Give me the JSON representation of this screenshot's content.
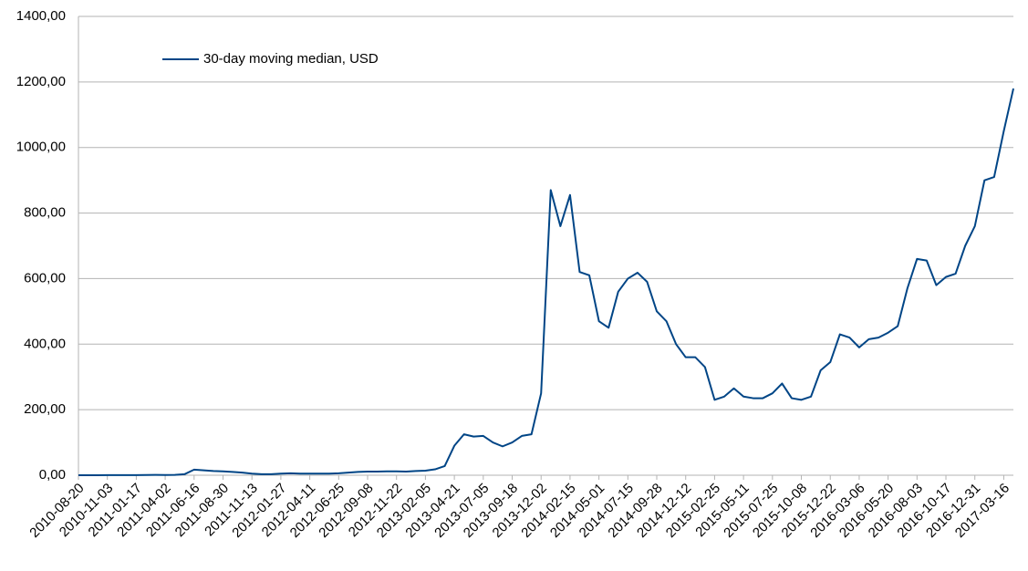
{
  "chart_data": {
    "type": "line",
    "categories": [
      "2010-08-20",
      null,
      null,
      "2010-11-03",
      null,
      null,
      "2011-01-17",
      null,
      null,
      "2011-04-02",
      null,
      null,
      "2011-06-16",
      null,
      null,
      "2011-08-30",
      null,
      null,
      "2011-11-13",
      null,
      null,
      "2012-01-27",
      null,
      null,
      "2012-04-11",
      null,
      null,
      "2012-06-25",
      null,
      null,
      "2012-09-08",
      null,
      null,
      "2012-11-22",
      null,
      null,
      "2013-02-05",
      null,
      null,
      "2013-04-21",
      null,
      null,
      "2013-07-05",
      null,
      null,
      "2013-09-18",
      null,
      null,
      "2013-12-02",
      null,
      null,
      "2014-02-15",
      null,
      null,
      "2014-05-01",
      null,
      null,
      "2014-07-15",
      null,
      null,
      "2014-09-28",
      null,
      null,
      "2014-12-12",
      null,
      null,
      "2015-02-25",
      null,
      null,
      "2015-05-11",
      null,
      null,
      "2015-07-25",
      null,
      null,
      "2015-10-08",
      null,
      null,
      "2015-12-22",
      null,
      null,
      "2016-03-06",
      null,
      null,
      "2016-05-20",
      null,
      null,
      "2016-08-03",
      null,
      null,
      "2016-10-17",
      null,
      null,
      "2016-12-31",
      null,
      null,
      "2017-03-16",
      null
    ],
    "series": [
      {
        "name": "30-day moving median, USD",
        "color": "#004586",
        "values": [
          0,
          0,
          0,
          0.2,
          0.3,
          0.3,
          0.4,
          0.6,
          0.9,
          0.8,
          1,
          3,
          17,
          15,
          13,
          12,
          10,
          8,
          5,
          3,
          3,
          5,
          6,
          5,
          5,
          5,
          5,
          6,
          8,
          10,
          11,
          11,
          12,
          12,
          11,
          13,
          14,
          18,
          28,
          90,
          125,
          118,
          120,
          100,
          88,
          100,
          120,
          125,
          250,
          870,
          760,
          855,
          620,
          610,
          470,
          450,
          560,
          600,
          618,
          590,
          500,
          470,
          400,
          360,
          360,
          330,
          230,
          240,
          265,
          240,
          235,
          235,
          250,
          280,
          235,
          230,
          240,
          320,
          345,
          430,
          420,
          390,
          415,
          420,
          435,
          455,
          570,
          660,
          655,
          580,
          605,
          615,
          700,
          760,
          900,
          910,
          1050,
          1180
        ]
      }
    ],
    "ylim": [
      0,
      1400
    ],
    "yticks": [
      {
        "value": 0,
        "label": "0,00"
      },
      {
        "value": 200,
        "label": "200,00"
      },
      {
        "value": 400,
        "label": "400,00"
      },
      {
        "value": 600,
        "label": "600,00"
      },
      {
        "value": 800,
        "label": "800,00"
      },
      {
        "value": 1000,
        "label": "1000,00"
      },
      {
        "value": 1200,
        "label": "1200,00"
      },
      {
        "value": 1400,
        "label": "1400,00"
      }
    ],
    "grid": true,
    "legend": "upper left"
  }
}
